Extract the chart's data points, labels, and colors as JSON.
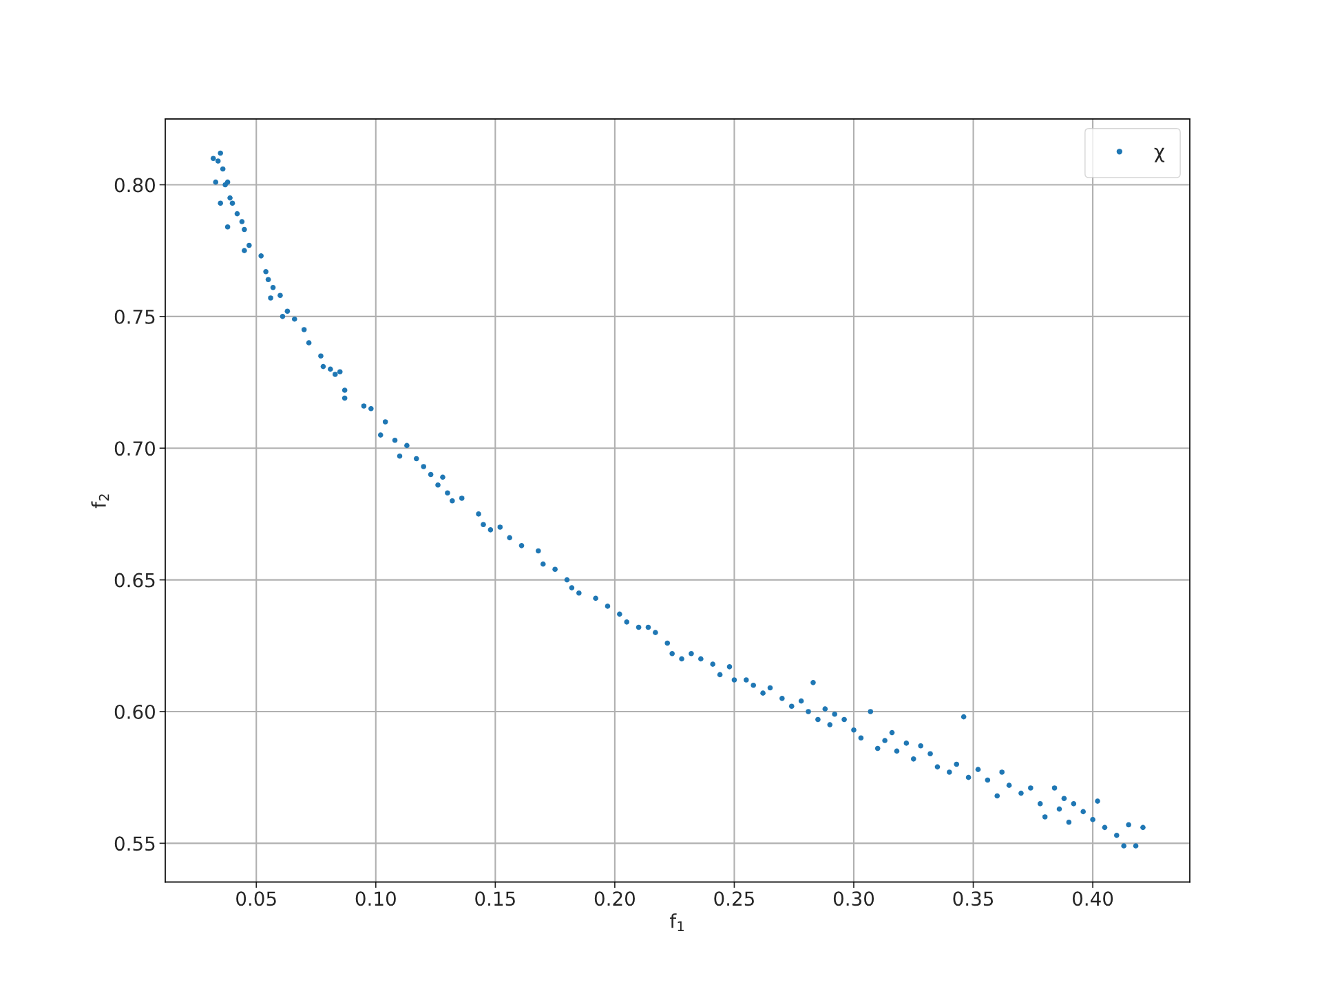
{
  "chart_data": {
    "type": "scatter",
    "xlabel": "f$_{1}$",
    "ylabel": "f$_{2}$",
    "xlim": [
      0.0119,
      0.4406
    ],
    "ylim": [
      0.5353,
      0.825
    ],
    "xticks": [
      {
        "value": 0.05,
        "label": "0.05"
      },
      {
        "value": 0.1,
        "label": "0.10"
      },
      {
        "value": 0.15,
        "label": "0.15"
      },
      {
        "value": 0.2,
        "label": "0.20"
      },
      {
        "value": 0.25,
        "label": "0.25"
      },
      {
        "value": 0.3,
        "label": "0.30"
      },
      {
        "value": 0.35,
        "label": "0.35"
      },
      {
        "value": 0.4,
        "label": "0.40"
      }
    ],
    "yticks": [
      {
        "value": 0.55,
        "label": "0.55"
      },
      {
        "value": 0.6,
        "label": "0.60"
      },
      {
        "value": 0.65,
        "label": "0.65"
      },
      {
        "value": 0.7,
        "label": "0.70"
      },
      {
        "value": 0.75,
        "label": "0.75"
      },
      {
        "value": 0.8,
        "label": "0.80"
      }
    ],
    "grid": true,
    "legend": "top right",
    "marker": "circle",
    "series": [
      {
        "name": "χ",
        "color": "#1f77b4",
        "x": [
          0.032,
          0.034,
          0.035,
          0.033,
          0.036,
          0.037,
          0.035,
          0.038,
          0.039,
          0.04,
          0.038,
          0.042,
          0.044,
          0.045,
          0.045,
          0.047,
          0.052,
          0.054,
          0.055,
          0.056,
          0.057,
          0.06,
          0.061,
          0.063,
          0.066,
          0.07,
          0.072,
          0.077,
          0.078,
          0.081,
          0.083,
          0.085,
          0.087,
          0.087,
          0.095,
          0.098,
          0.102,
          0.104,
          0.108,
          0.11,
          0.113,
          0.117,
          0.12,
          0.123,
          0.126,
          0.128,
          0.13,
          0.132,
          0.136,
          0.143,
          0.145,
          0.148,
          0.152,
          0.156,
          0.161,
          0.168,
          0.17,
          0.175,
          0.18,
          0.182,
          0.185,
          0.192,
          0.197,
          0.202,
          0.205,
          0.21,
          0.214,
          0.217,
          0.222,
          0.224,
          0.228,
          0.232,
          0.236,
          0.241,
          0.244,
          0.248,
          0.25,
          0.255,
          0.258,
          0.262,
          0.265,
          0.27,
          0.274,
          0.278,
          0.281,
          0.283,
          0.285,
          0.288,
          0.29,
          0.292,
          0.296,
          0.3,
          0.303,
          0.307,
          0.31,
          0.313,
          0.316,
          0.318,
          0.322,
          0.325,
          0.328,
          0.332,
          0.335,
          0.34,
          0.343,
          0.346,
          0.348,
          0.352,
          0.356,
          0.36,
          0.362,
          0.365,
          0.37,
          0.374,
          0.378,
          0.38,
          0.384,
          0.386,
          0.388,
          0.39,
          0.392,
          0.396,
          0.4,
          0.402,
          0.405,
          0.41,
          0.413,
          0.415,
          0.418,
          0.421
        ],
        "values": [
          0.81,
          0.809,
          0.812,
          0.801,
          0.806,
          0.8,
          0.793,
          0.801,
          0.795,
          0.793,
          0.784,
          0.789,
          0.786,
          0.783,
          0.775,
          0.777,
          0.773,
          0.767,
          0.764,
          0.757,
          0.761,
          0.758,
          0.75,
          0.752,
          0.749,
          0.745,
          0.74,
          0.735,
          0.731,
          0.73,
          0.728,
          0.729,
          0.722,
          0.719,
          0.716,
          0.715,
          0.705,
          0.71,
          0.703,
          0.697,
          0.701,
          0.696,
          0.693,
          0.69,
          0.686,
          0.689,
          0.683,
          0.68,
          0.681,
          0.675,
          0.671,
          0.669,
          0.67,
          0.666,
          0.663,
          0.661,
          0.656,
          0.654,
          0.65,
          0.647,
          0.645,
          0.643,
          0.64,
          0.637,
          0.634,
          0.632,
          0.632,
          0.63,
          0.626,
          0.622,
          0.62,
          0.622,
          0.62,
          0.618,
          0.614,
          0.617,
          0.612,
          0.612,
          0.61,
          0.607,
          0.609,
          0.605,
          0.602,
          0.604,
          0.6,
          0.611,
          0.597,
          0.601,
          0.595,
          0.599,
          0.597,
          0.593,
          0.59,
          0.6,
          0.586,
          0.589,
          0.592,
          0.585,
          0.588,
          0.582,
          0.587,
          0.584,
          0.579,
          0.577,
          0.58,
          0.598,
          0.575,
          0.578,
          0.574,
          0.568,
          0.577,
          0.572,
          0.569,
          0.571,
          0.565,
          0.56,
          0.571,
          0.563,
          0.567,
          0.558,
          0.565,
          0.562,
          0.559,
          0.566,
          0.556,
          0.553,
          0.549,
          0.557,
          0.549,
          0.556
        ]
      }
    ]
  }
}
